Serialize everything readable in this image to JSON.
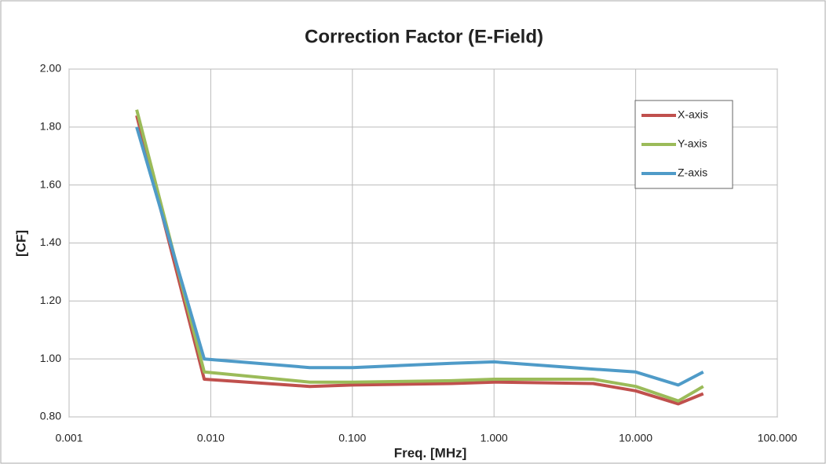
{
  "chart_data": {
    "type": "line",
    "title": "Correction Factor (E-Field)",
    "xlabel": "Freq.  [MHz]",
    "ylabel": "[CF]",
    "x": [
      0.003,
      0.009,
      0.05,
      0.1,
      0.5,
      1,
      5,
      10,
      20,
      30
    ],
    "series": [
      {
        "name": "X-axis",
        "color": "#c0504d",
        "values": [
          1.84,
          0.93,
          0.905,
          0.91,
          0.915,
          0.92,
          0.915,
          0.89,
          0.845,
          0.88
        ]
      },
      {
        "name": "Y-axis",
        "color": "#9bbb59",
        "values": [
          1.86,
          0.955,
          0.92,
          0.92,
          0.925,
          0.93,
          0.93,
          0.905,
          0.855,
          0.905
        ]
      },
      {
        "name": "Z-axis",
        "color": "#4f9bc8",
        "values": [
          1.8,
          1.0,
          0.97,
          0.97,
          0.985,
          0.99,
          0.965,
          0.955,
          0.91,
          0.955
        ]
      }
    ],
    "xscale": "log",
    "xlim": [
      0.001,
      100
    ],
    "xticks": [
      0.001,
      {
        "value": 0.01,
        "label": "0.010"
      },
      {
        "value": 0.1,
        "label": "0.100"
      },
      {
        "value": 1,
        "label": "1.000"
      },
      {
        "value": 10,
        "label": "10.000"
      },
      {
        "value": 100,
        "label": "100.000"
      }
    ],
    "ylim": [
      0.8,
      2.0
    ],
    "yticks": [
      {
        "value": 0.8,
        "label": "0.80"
      },
      {
        "value": 1.0,
        "label": "1.00"
      },
      {
        "value": 1.2,
        "label": "1.20"
      },
      {
        "value": 1.4,
        "label": "1.40"
      },
      {
        "value": 1.6,
        "label": "1.60"
      },
      {
        "value": 1.8,
        "label": "1.80"
      },
      {
        "value": 2.0,
        "label": "2.00"
      }
    ],
    "grid": true,
    "legend": "upper right"
  }
}
